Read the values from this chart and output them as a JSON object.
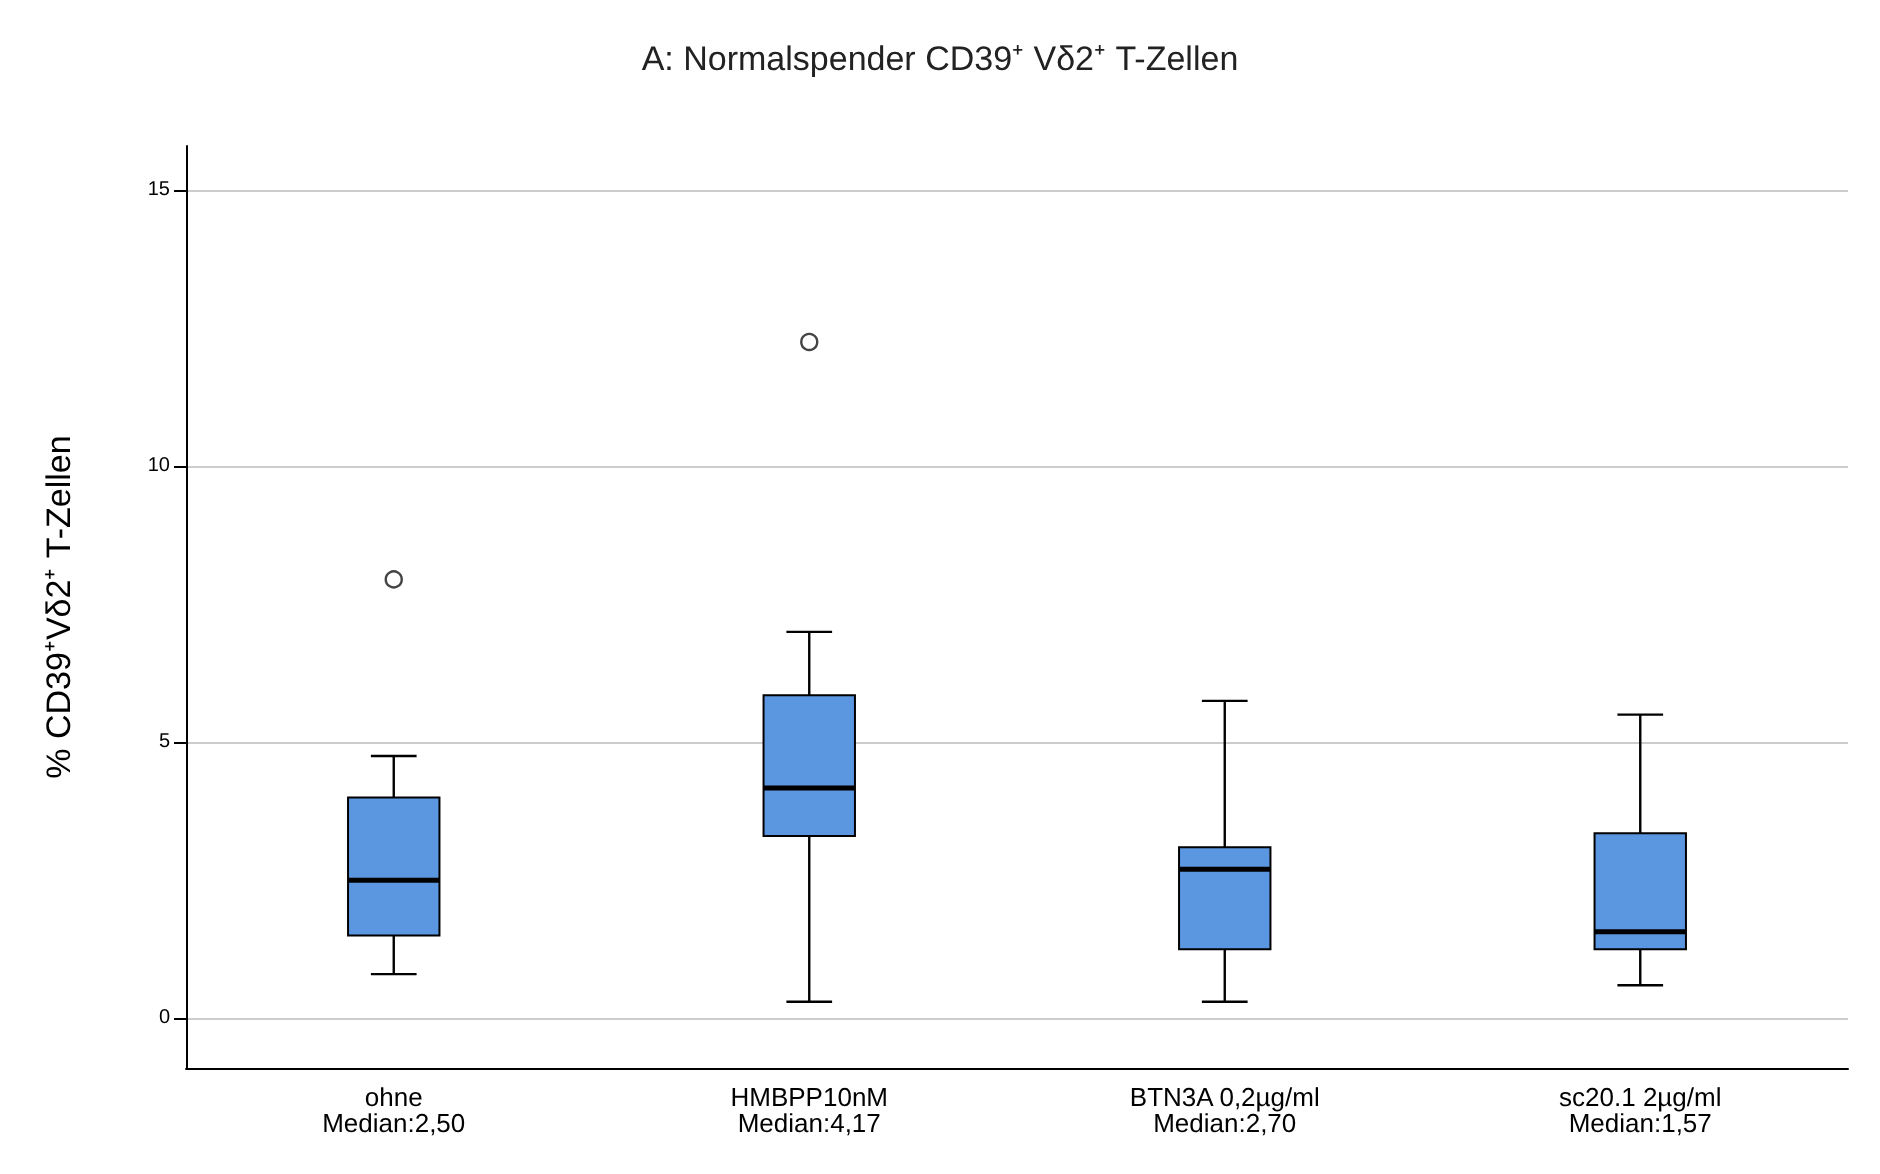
{
  "chart_data": {
    "type": "box",
    "title": "A: Normalspender CD39⁺ Vδ2⁺ T-Zellen",
    "ylabel": "% CD39⁺Vδ2⁺ T-Zellen",
    "categories": [
      "ohne\nMedian:2,50",
      "HMBPP10nM\nMedian:4,17",
      "BTN3A 0,2µg/ml\nMedian:2,70",
      "sc20.1 2µg/ml\nMedian:1,57"
    ],
    "color": "#5b96e0",
    "boxes": [
      {
        "low": 0.8,
        "q1": 1.5,
        "median": 2.5,
        "q3": 4.0,
        "high": 4.75,
        "outliers": [
          7.95
        ]
      },
      {
        "low": 0.3,
        "q1": 3.3,
        "median": 4.17,
        "q3": 5.85,
        "high": 7.0,
        "outliers": [
          12.25
        ]
      },
      {
        "low": 0.3,
        "q1": 1.25,
        "median": 2.7,
        "q3": 3.1,
        "high": 5.75
      },
      {
        "low": 0.6,
        "q1": 1.25,
        "median": 1.57,
        "q3": 3.35,
        "high": 5.5
      }
    ],
    "ylim": [
      -0.9,
      15.8
    ],
    "yticks": [
      0,
      5,
      10,
      15
    ],
    "grid": "y"
  }
}
